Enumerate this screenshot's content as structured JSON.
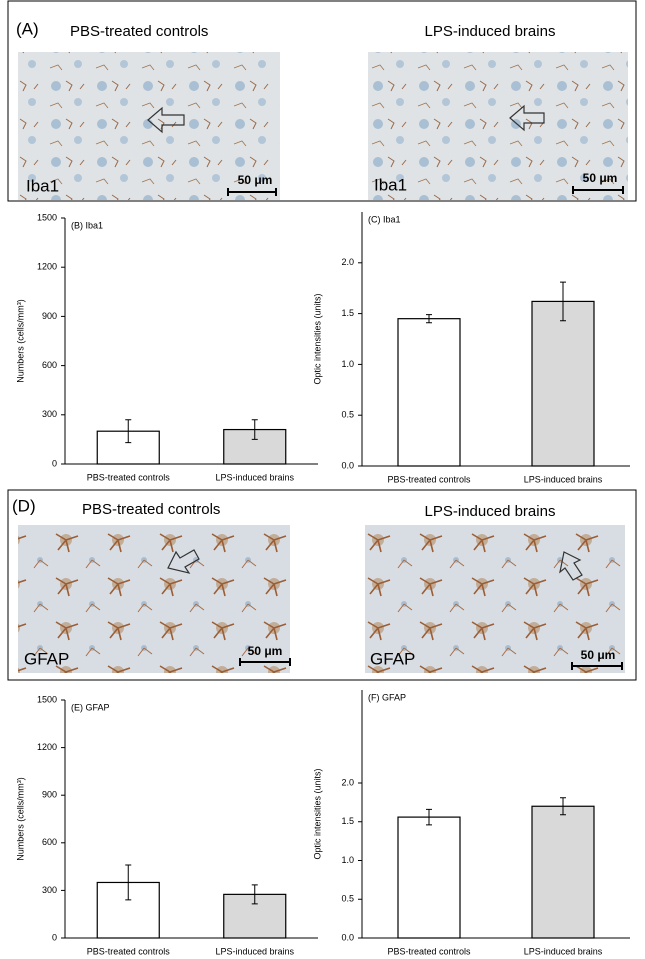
{
  "panels": [
    {
      "label": "(A)",
      "titles": [
        "PBS-treated controls",
        "LPS-induced brains"
      ],
      "stains": [
        "Iba1",
        "Iba1"
      ],
      "scales": [
        "50 μm",
        "50 μm"
      ]
    },
    {
      "label": "(D)",
      "titles": [
        "PBS-treated controls",
        "LPS-induced brains"
      ],
      "stains": [
        "GFAP",
        "GFAP"
      ],
      "scales": [
        "50 μm",
        "50 μm"
      ]
    }
  ],
  "chart_data": [
    {
      "type": "bar",
      "title": "(B) Iba1",
      "y_label": "Numbers (cells/mm³)",
      "categories": [
        "PBS-treated controls",
        "LPS-induced brains"
      ],
      "values": [
        200,
        210
      ],
      "errors": [
        70,
        60
      ],
      "colors": [
        "#ffffff",
        "#d9d9d9"
      ],
      "ylim": [
        0,
        1500
      ],
      "yticks": [
        0,
        300,
        600,
        900,
        1200,
        1500
      ]
    },
    {
      "type": "bar",
      "title": "(C) Iba1",
      "y_label": "Optic intensities (units)",
      "categories": [
        "PBS-treated controls",
        "LPS-induced brains"
      ],
      "values": [
        1.45,
        1.62
      ],
      "errors": [
        0.04,
        0.19
      ],
      "colors": [
        "#ffffff",
        "#d9d9d9"
      ],
      "ylim": [
        0,
        2.5
      ],
      "yticks": [
        {
          "value": 0,
          "label": "0.0"
        },
        0.5,
        {
          "value": 1,
          "label": "1.0"
        },
        1.5,
        {
          "value": 2,
          "label": "2.0"
        }
      ]
    },
    {
      "type": "bar",
      "title": "(E) GFAP",
      "y_label": "Numbers (cells/mm³)",
      "categories": [
        "PBS-treated controls",
        "LPS-induced brains"
      ],
      "values": [
        350,
        275
      ],
      "errors": [
        110,
        60
      ],
      "colors": [
        "#ffffff",
        "#d9d9d9"
      ],
      "ylim": [
        0,
        1500
      ],
      "yticks": [
        0,
        300,
        600,
        900,
        1200,
        1500
      ]
    },
    {
      "type": "bar",
      "title": "(F) GFAP",
      "y_label": "Optic intensities (units)",
      "categories": [
        "PBS-treated controls",
        "LPS-induced brains"
      ],
      "values": [
        1.56,
        1.7
      ],
      "errors": [
        0.1,
        0.11
      ],
      "colors": [
        "#ffffff",
        "#d9d9d9"
      ],
      "ylim": [
        0,
        3.2
      ],
      "yticks": [
        {
          "value": 0,
          "label": "0.0"
        },
        0.5,
        {
          "value": 1,
          "label": "1.0"
        },
        1.5,
        {
          "value": 2,
          "label": "2.0"
        }
      ]
    }
  ]
}
